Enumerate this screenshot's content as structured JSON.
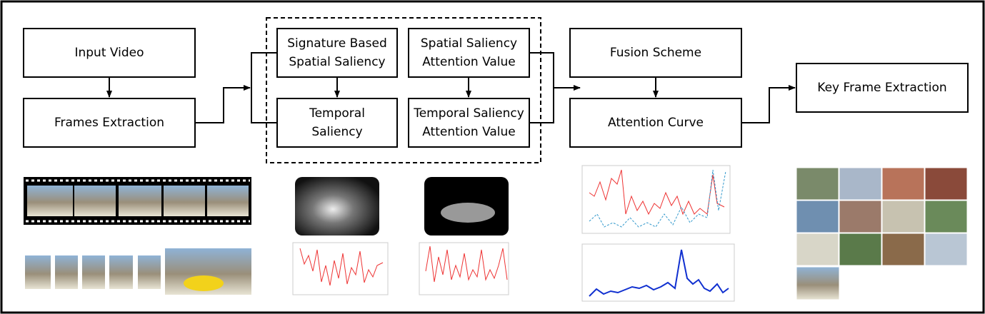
{
  "nodes": [
    {
      "lines": [
        "Input Video"
      ]
    },
    {
      "lines": [
        "Frames Extraction"
      ]
    },
    {
      "lines": [
        "Signature Based",
        "Spatial Saliency"
      ]
    },
    {
      "lines": [
        "Temporal",
        "Saliency"
      ]
    },
    {
      "lines": [
        "Spatial Saliency",
        "Attention Value"
      ]
    },
    {
      "lines": [
        "Temporal Saliency",
        "Attention Value"
      ]
    },
    {
      "lines": [
        "Fusion Scheme"
      ]
    },
    {
      "lines": [
        "Attention Curve"
      ]
    },
    {
      "lines": [
        "Key Frame Extraction"
      ]
    }
  ]
}
